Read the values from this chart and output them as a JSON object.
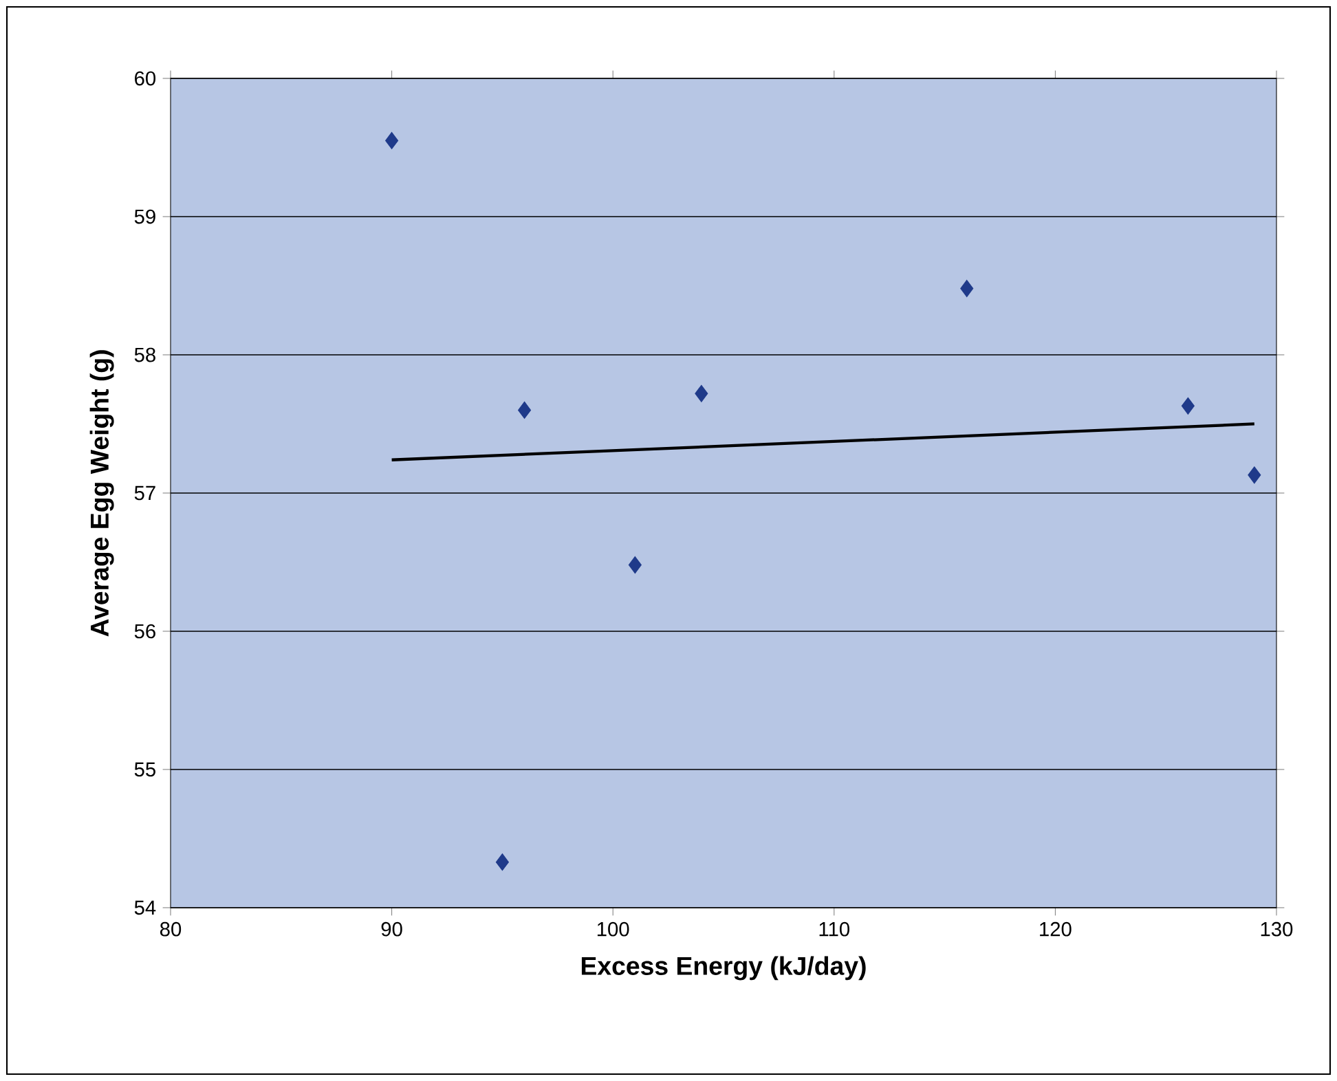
{
  "chart_data": {
    "type": "scatter",
    "xlabel": "Excess Energy (kJ/day)",
    "ylabel": "Average Egg Weight (g)",
    "xlim": [
      80,
      130
    ],
    "xticks": [
      80,
      90,
      100,
      110,
      120,
      130
    ],
    "ylim": [
      54,
      60
    ],
    "yticks": [
      54,
      55,
      56,
      57,
      58,
      59,
      60
    ],
    "grid": "y",
    "series": [
      {
        "marker": "diamond",
        "color": "#1f3a8a",
        "x": [
          90,
          95,
          96,
          101,
          104,
          116,
          126,
          129
        ],
        "values": [
          59.55,
          54.33,
          57.6,
          56.48,
          57.72,
          58.48,
          57.63,
          57.13
        ]
      },
      {
        "type": "line",
        "marker": "none",
        "color": "#000000",
        "x": [
          90,
          129
        ],
        "values": [
          57.24,
          57.5
        ]
      }
    ]
  }
}
